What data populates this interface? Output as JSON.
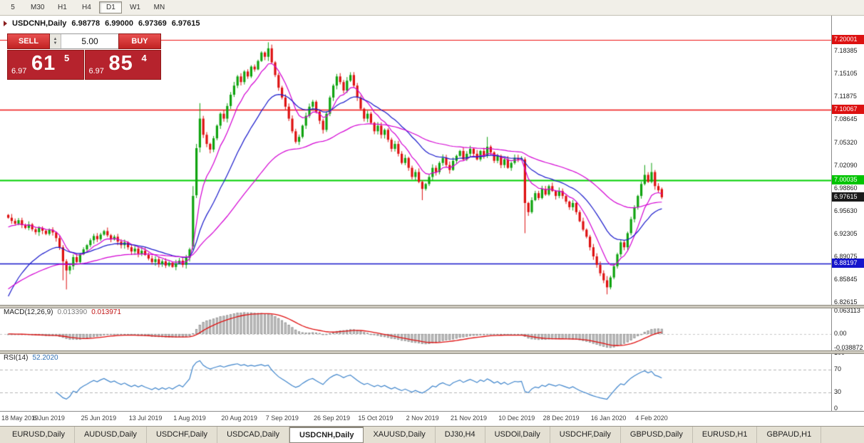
{
  "toolbar": {
    "timeframes": [
      "5",
      "M30",
      "H1",
      "H4",
      "D1",
      "W1",
      "MN"
    ],
    "active": "D1"
  },
  "chart": {
    "symbol_period": "USDCNH,Daily",
    "ohlc": {
      "open": "6.98778",
      "high": "6.99000",
      "low": "6.97369",
      "close": "6.97615"
    }
  },
  "trade_panel": {
    "sell_label": "SELL",
    "buy_label": "BUY",
    "volume": "5.00",
    "sell_price": {
      "small": "6.97",
      "big": "61",
      "sup": "5"
    },
    "buy_price": {
      "small": "6.97",
      "big": "85",
      "sup": "4"
    }
  },
  "indicators": {
    "macd": {
      "name": "MACD(12,26,9)",
      "value1": "0.013390",
      "value2": "0.013971"
    },
    "rsi": {
      "name": "RSI(14)",
      "value": "52.2020"
    }
  },
  "price_axis_tags": [
    {
      "label": "7.20001",
      "bg": "#dd1111",
      "color": "#ffffff"
    },
    {
      "label": "7.10067",
      "bg": "#dd1111",
      "color": "#ffffff"
    },
    {
      "label": "7.00035",
      "bg": "#00c400",
      "color": "#ffffff"
    },
    {
      "label": "6.97615",
      "bg": "#1a1a1a",
      "color": "#ffffff"
    },
    {
      "label": "6.88197",
      "bg": "#1515cc",
      "color": "#ffffff"
    }
  ],
  "bottom_tabs": {
    "active_index": 4,
    "items": [
      "EURUSD,Daily",
      "AUDUSD,Daily",
      "USDCHF,Daily",
      "USDCAD,Daily",
      "USDCNH,Daily",
      "XAUUSD,Daily",
      "DJ30,H4",
      "USDOil,Daily",
      "USDCHF,Daily",
      "GBPUSD,Daily",
      "EURUSD,H1",
      "GBPAUD,H1"
    ]
  },
  "chart_data": {
    "type": "candlestick",
    "symbol": "USDCNH",
    "timeframe": "Daily",
    "candle_up": "#0fa30f",
    "candle_down": "#de1111",
    "y_axis": {
      "min": 6.8231,
      "max": 7.2213,
      "ticks": [
        "7.18385",
        "7.15105",
        "7.11875",
        "7.08645",
        "7.05320",
        "7.02090",
        "6.98860",
        "6.95630",
        "6.92305",
        "6.89075",
        "6.85845",
        "6.82615"
      ]
    },
    "levels": [
      {
        "price": 7.20001,
        "color": "#ee1111",
        "width": 1.2
      },
      {
        "price": 7.10067,
        "color": "#ee1111",
        "width": 1.4
      },
      {
        "price": 7.00035,
        "color": "#00d000",
        "width": 2
      },
      {
        "price": 6.88197,
        "color": "#1515cc",
        "width": 1.6
      }
    ],
    "current_price": 6.97615,
    "x_ticks": [
      {
        "bar": 0,
        "label": "18 May 2019"
      },
      {
        "bar": 13,
        "label": "6 Jun 2019"
      },
      {
        "bar": 27,
        "label": "25 Jun 2019"
      },
      {
        "bar": 41,
        "label": "13 Jul 2019"
      },
      {
        "bar": 54,
        "label": "1 Aug 2019"
      },
      {
        "bar": 68,
        "label": "20 Aug 2019"
      },
      {
        "bar": 81,
        "label": "7 Sep 2019"
      },
      {
        "bar": 95,
        "label": "26 Sep 2019"
      },
      {
        "bar": 108,
        "label": "15 Oct 2019"
      },
      {
        "bar": 122,
        "label": "2 Nov 2019"
      },
      {
        "bar": 135,
        "label": "21 Nov 2019"
      },
      {
        "bar": 149,
        "label": "10 Dec 2019"
      },
      {
        "bar": 162,
        "label": "28 Dec 2019"
      },
      {
        "bar": 176,
        "label": "16 Jan 2020"
      },
      {
        "bar": 189,
        "label": "4 Feb 2020"
      }
    ],
    "closes": [
      6.947,
      6.9425,
      6.9385,
      6.9435,
      6.9365,
      6.9325,
      6.9375,
      6.9305,
      6.9265,
      6.9325,
      6.9285,
      6.924,
      6.93,
      6.926,
      6.918,
      6.905,
      6.885,
      6.872,
      6.878,
      6.891,
      6.884,
      6.895,
      6.902,
      6.908,
      6.915,
      6.921,
      6.9165,
      6.923,
      6.928,
      6.922,
      6.916,
      6.92,
      6.913,
      6.908,
      6.912,
      6.905,
      6.899,
      6.903,
      6.896,
      6.9,
      6.894,
      6.889,
      6.884,
      6.888,
      6.881,
      6.885,
      6.879,
      6.883,
      6.877,
      6.882,
      6.886,
      6.88,
      6.89,
      6.902,
      6.978,
      7.046,
      7.088,
      7.065,
      7.052,
      7.044,
      7.06,
      7.078,
      7.095,
      7.088,
      7.106,
      7.122,
      7.135,
      7.148,
      7.14,
      7.155,
      7.148,
      7.162,
      7.158,
      7.17,
      7.182,
      7.176,
      7.188,
      7.168,
      7.15,
      7.132,
      7.118,
      7.105,
      7.088,
      7.07,
      7.055,
      7.062,
      7.078,
      7.092,
      7.105,
      7.112,
      7.098,
      7.085,
      7.072,
      7.095,
      7.118,
      7.135,
      7.148,
      7.14,
      7.128,
      7.142,
      7.15,
      7.135,
      7.118,
      7.102,
      7.088,
      7.095,
      7.082,
      7.07,
      7.078,
      7.065,
      7.072,
      7.058,
      7.045,
      7.052,
      7.038,
      7.025,
      7.032,
      7.018,
      7.005,
      7.012,
      6.998,
      6.988,
      6.995,
      7.005,
      7.018,
      7.012,
      7.025,
      7.032,
      7.022,
      7.015,
      7.028,
      7.035,
      7.042,
      7.03,
      7.038,
      7.045,
      7.038,
      7.03,
      7.042,
      7.035,
      7.048,
      7.04,
      7.028,
      7.035,
      7.022,
      7.03,
      7.018,
      7.025,
      7.032,
      7.03,
      7.032,
      6.968,
      6.955,
      6.972,
      6.982,
      6.975,
      6.988,
      6.98,
      6.992,
      6.985,
      6.978,
      6.985,
      6.978,
      6.97,
      6.962,
      6.968,
      6.955,
      6.942,
      6.93,
      6.92,
      6.905,
      6.892,
      6.88,
      6.868,
      6.858,
      6.848,
      6.862,
      6.878,
      6.895,
      6.912,
      6.905,
      6.925,
      6.945,
      6.962,
      6.978,
      6.995,
      7.008,
      6.998,
      7.012,
      6.992,
      6.986,
      6.97615
    ],
    "candle_overrides": {
      "16": [
        6.905,
        6.908,
        6.858,
        6.885
      ],
      "17": [
        6.885,
        6.888,
        6.845,
        6.872
      ],
      "54": [
        6.906,
        6.992,
        6.901,
        6.978
      ],
      "55": [
        6.979,
        7.052,
        6.975,
        7.046
      ],
      "56": [
        7.047,
        7.11,
        7.04,
        7.088
      ],
      "76": [
        7.176,
        7.1966,
        7.17,
        7.188
      ],
      "121": [
        6.998,
        7.0,
        6.972,
        6.988
      ],
      "140": [
        7.035,
        7.062,
        7.032,
        7.048
      ],
      "151": [
        7.03,
        7.033,
        6.925,
        6.968
      ],
      "175": [
        6.858,
        6.864,
        6.838,
        6.848
      ],
      "186": [
        6.995,
        7.022,
        6.993,
        7.008
      ],
      "188": [
        6.998,
        7.025,
        6.996,
        7.012
      ],
      "191": [
        6.98778,
        6.99,
        6.97369,
        6.97615
      ]
    },
    "moving_averages": [
      {
        "type": "EMA",
        "period": 8,
        "color": "#d400d4",
        "seed": 6.93
      },
      {
        "type": "EMA",
        "period": 21,
        "color": "#1a1acc",
        "seed": 6.824
      },
      {
        "type": "EMA",
        "period": 55,
        "color": "#d400d4",
        "seed": 6.842
      }
    ],
    "macd": {
      "fast": 12,
      "slow": 26,
      "signal": 9,
      "axis": [
        "0.063113",
        "0.00",
        "-0.038872"
      ],
      "hist_fill": "#c6c6c6",
      "hist_stroke": "#909090",
      "signal_color": "#e01111"
    },
    "rsi": {
      "period": 14,
      "levels": [
        100,
        70,
        30,
        0
      ],
      "line_color": "#3f85cc"
    }
  }
}
